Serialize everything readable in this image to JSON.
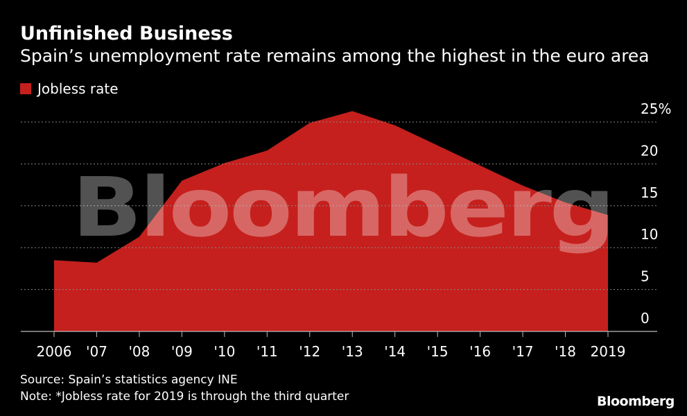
{
  "chart_data": {
    "type": "area",
    "title": "Unfinished Business",
    "subtitle": "Spain’s unemployment rate remains among the highest in the euro area",
    "x": [
      "2006",
      "'07",
      "'08",
      "'09",
      "'10",
      "'11",
      "'12",
      "'13",
      "'14",
      "'15",
      "'16",
      "'17",
      "'18",
      "2019"
    ],
    "series": [
      {
        "name": "Jobless rate",
        "color": "#c5201d",
        "values": [
          8.5,
          8.2,
          11.3,
          18.0,
          20.1,
          21.6,
          24.9,
          26.3,
          24.6,
          22.2,
          19.8,
          17.4,
          15.4,
          13.9
        ]
      }
    ],
    "ylim": [
      0,
      25
    ],
    "yticks": [
      0,
      5,
      10,
      15,
      20,
      25
    ],
    "ytick_labels": [
      "0",
      "5",
      "10",
      "15",
      "20",
      "25%"
    ],
    "grid": true,
    "legend_placement": "top-left",
    "watermark": "Bloomberg",
    "source": "Source: Spain’s statistics agency INE",
    "note": "Note: *Jobless rate for 2019 is through the third quarter",
    "brand": "Bloomberg",
    "colors": {
      "background": "#000000",
      "area": "#c5201d",
      "grid": "#8a8a8a",
      "text": "#ffffff"
    }
  }
}
